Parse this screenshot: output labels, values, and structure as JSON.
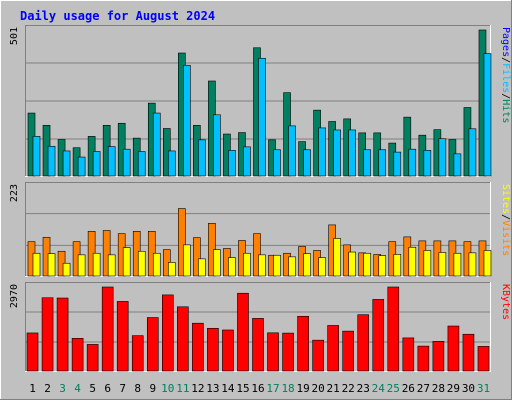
{
  "title": "Daily usage for August 2024",
  "colors": {
    "hits": "#008060",
    "files": "#00c0ff",
    "visits": "#ff8000",
    "sites": "#ffff00",
    "kbytes": "#ff0000",
    "title": "#0000ff",
    "weekend_day": "#00805c"
  },
  "chart_data": [
    {
      "type": "bar",
      "title": "Daily usage for August 2024",
      "categories": [
        "1",
        "2",
        "3",
        "4",
        "5",
        "6",
        "7",
        "8",
        "9",
        "10",
        "11",
        "12",
        "13",
        "14",
        "15",
        "16",
        "17",
        "18",
        "19",
        "20",
        "21",
        "22",
        "23",
        "24",
        "25",
        "26",
        "27",
        "28",
        "29",
        "30",
        "31"
      ],
      "weekend_days": [
        "3",
        "4",
        "10",
        "11",
        "17",
        "18",
        "24",
        "25",
        "31"
      ],
      "ylabel_max": "501",
      "legend": [
        "Pages",
        "Files",
        "Hits"
      ],
      "ylim": [
        0,
        501
      ],
      "series": [
        {
          "name": "Hits",
          "color": "#008060",
          "values": [
            216,
            174,
            125,
            97,
            136,
            174,
            181,
            130,
            250,
            163,
            422,
            174,
            326,
            144,
            149,
            440,
            124,
            286,
            118,
            226,
            187,
            196,
            148,
            148,
            113,
            202,
            140,
            159,
            125,
            235,
            501
          ]
        },
        {
          "name": "Files",
          "color": "#00c0ff",
          "values": [
            136,
            102,
            86,
            65,
            84,
            101,
            92,
            84,
            216,
            86,
            380,
            124,
            210,
            88,
            100,
            404,
            90,
            172,
            90,
            165,
            158,
            158,
            90,
            90,
            82,
            92,
            88,
            128,
            76,
            162,
            420
          ]
        },
        {
          "name": "Pages",
          "color": "#0000ff",
          "values": [
            0,
            0,
            0,
            0,
            0,
            0,
            0,
            0,
            0,
            0,
            0,
            0,
            0,
            0,
            0,
            0,
            0,
            0,
            0,
            0,
            0,
            0,
            0,
            0,
            0,
            0,
            0,
            0,
            0,
            0,
            0
          ]
        }
      ]
    },
    {
      "type": "bar",
      "ylabel_max": "223",
      "legend": [
        "Sites",
        "Visits"
      ],
      "ylim": [
        0,
        223
      ],
      "series": [
        {
          "name": "Visits",
          "color": "#ff8000",
          "values": [
            86,
            97,
            62,
            86,
            112,
            114,
            106,
            112,
            112,
            66,
            169,
            96,
            132,
            69,
            89,
            106,
            52,
            57,
            74,
            64,
            128,
            78,
            58,
            54,
            86,
            98,
            88,
            88,
            88,
            86,
            88
          ]
        },
        {
          "name": "Sites",
          "color": "#ffff00",
          "values": [
            57,
            56,
            32,
            53,
            57,
            53,
            71,
            62,
            57,
            34,
            78,
            43,
            66,
            46,
            57,
            53,
            52,
            48,
            56,
            46,
            94,
            60,
            57,
            51,
            54,
            72,
            64,
            59,
            57,
            58,
            64
          ]
        }
      ]
    },
    {
      "type": "bar",
      "ylabel_max": "2970",
      "legend": [
        "KBytes"
      ],
      "ylim": [
        0,
        2970
      ],
      "series": [
        {
          "name": "KBytes",
          "color": "#ff0000",
          "values": [
            1345,
            2590,
            2580,
            1155,
            940,
            2970,
            2460,
            1250,
            1890,
            2690,
            2270,
            1690,
            1510,
            1450,
            2750,
            1860,
            1350,
            1340,
            1935,
            1090,
            1610,
            1410,
            1990,
            2530,
            2970,
            1170,
            880,
            1050,
            1590,
            1300,
            870
          ]
        }
      ]
    }
  ]
}
